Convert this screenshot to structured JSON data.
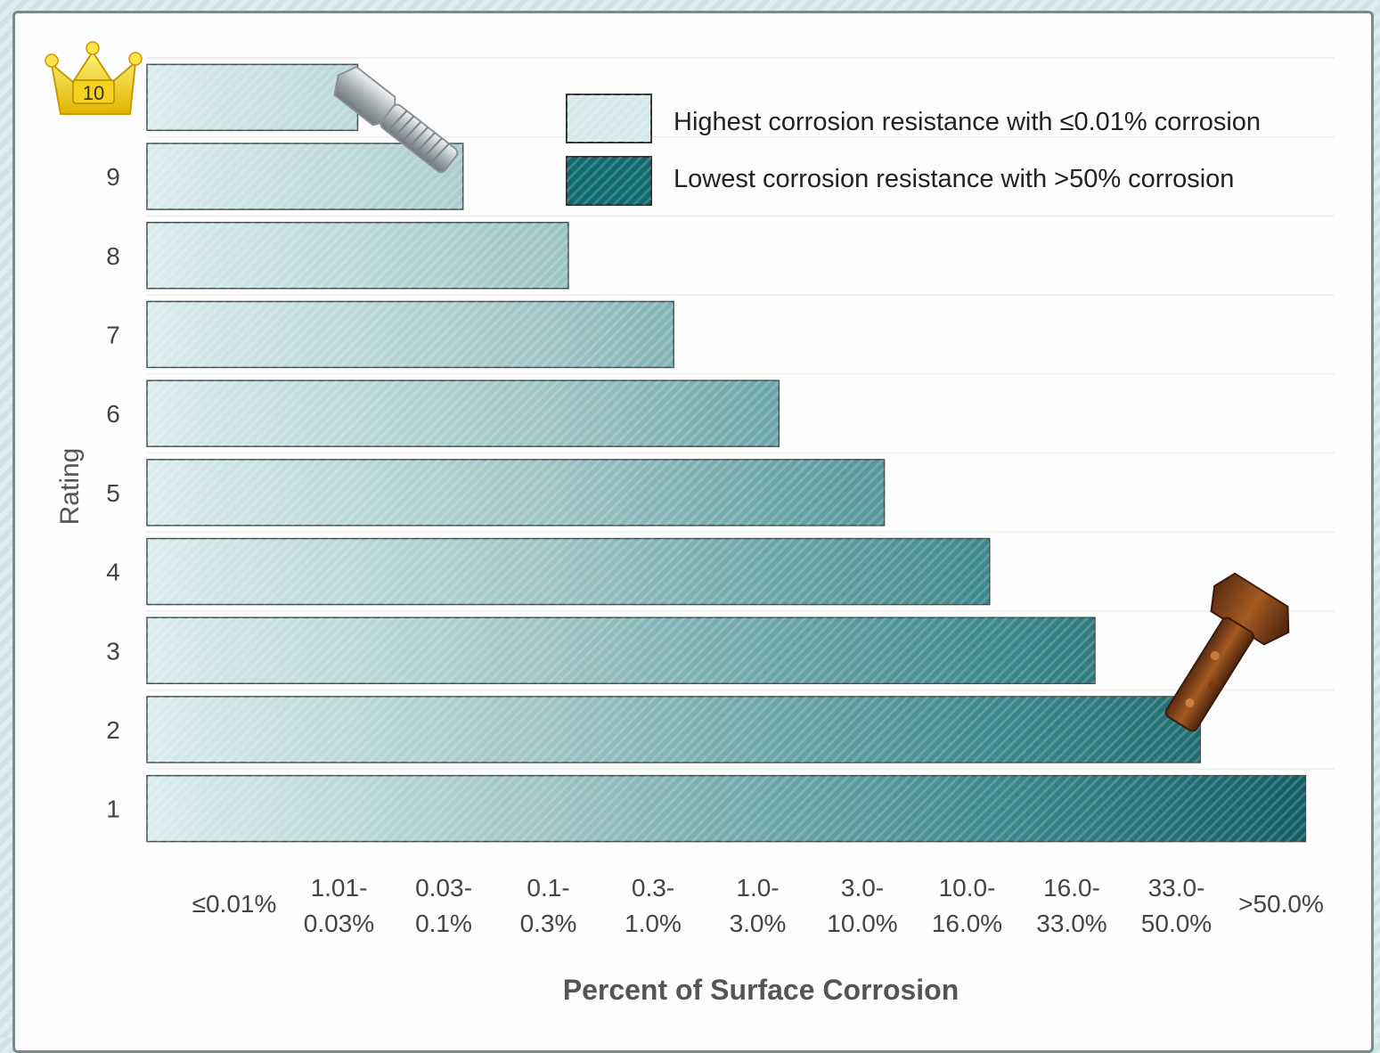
{
  "chart_data": {
    "type": "bar",
    "orientation": "horizontal",
    "ratings": [
      "1",
      "2",
      "3",
      "4",
      "5",
      "6",
      "7",
      "8",
      "9",
      "10"
    ],
    "values": [
      11,
      10,
      9,
      8,
      7,
      6,
      5,
      4,
      3,
      2
    ],
    "xmax": 11.25,
    "x_tick_labels": [
      [
        "≤0.01%"
      ],
      [
        "1.01-",
        "0.03%"
      ],
      [
        "0.03-",
        "0.1%"
      ],
      [
        "0.1-",
        "0.3%"
      ],
      [
        "0.3-",
        "1.0%"
      ],
      [
        "1.0-",
        "3.0%"
      ],
      [
        "3.0-",
        "10.0%"
      ],
      [
        "10.0-",
        "16.0%"
      ],
      [
        "16.0-",
        "33.0%"
      ],
      [
        "33.0-",
        "50.0%"
      ],
      [
        ">50.0%"
      ]
    ],
    "xlabel": "Percent of Surface Corrosion",
    "ylabel": "Rating",
    "legend": {
      "position": "top-right",
      "items": [
        {
          "label": "Highest corrosion resistance with ≤0.01% corrosion",
          "color": "#d6e9ea"
        },
        {
          "label": "Lowest corrosion resistance with >50% corrosion",
          "color": "#0d6a6f"
        }
      ]
    },
    "badge_label": "10",
    "colors": {
      "light": "#d9ecec",
      "dark": "#0b5a5e"
    }
  }
}
